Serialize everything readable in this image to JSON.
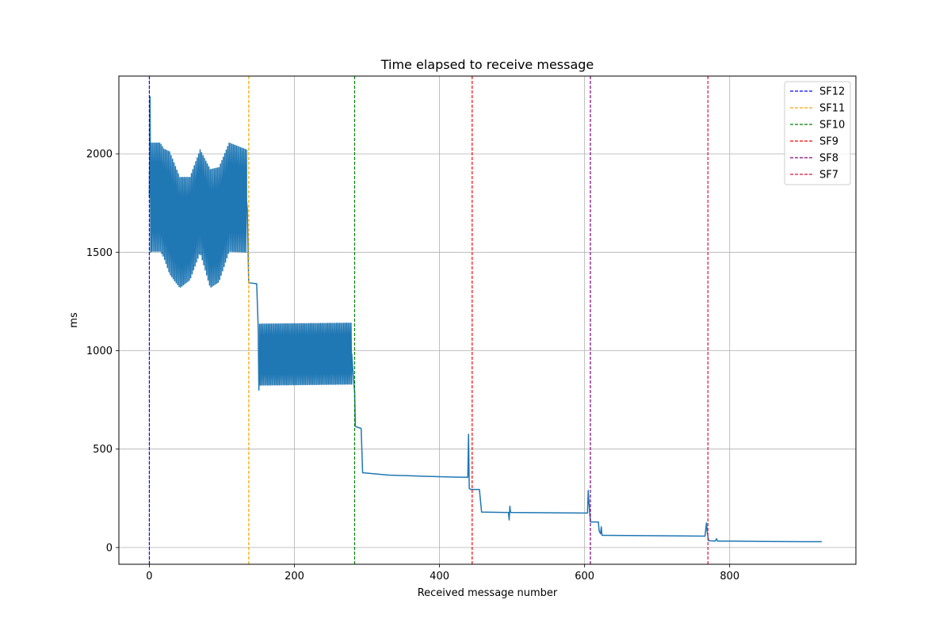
{
  "chart_data": {
    "type": "line",
    "title": "Time elapsed to receive message",
    "xlabel": "Received message number",
    "ylabel": "ms",
    "xlim": [
      -42,
      974
    ],
    "ylim": [
      -85,
      2395
    ],
    "xticks": [
      0,
      200,
      400,
      600,
      800
    ],
    "yticks": [
      0,
      500,
      1000,
      1500,
      2000
    ],
    "grid": true,
    "legend_position": "top-right",
    "series": [
      {
        "name": "",
        "color": "#1f77b4",
        "segments": [
          {
            "kind": "line",
            "points": [
              [
                0,
                1780
              ],
              [
                1,
                2290
              ],
              [
                2,
                1500
              ]
            ]
          },
          {
            "kind": "oscillation",
            "x_start": 2,
            "x_end": 134,
            "step": 1,
            "center": [
              [
                2,
                1780
              ],
              [
                15,
                1780
              ],
              [
                28,
                1700
              ],
              [
                42,
                1600
              ],
              [
                56,
                1620
              ],
              [
                70,
                1760
              ],
              [
                84,
                1620
              ],
              [
                96,
                1640
              ],
              [
                110,
                1780
              ],
              [
                134,
                1760
              ]
            ],
            "amplitude": [
              [
                2,
                275
              ],
              [
                20,
                275
              ],
              [
                28,
                310
              ],
              [
                42,
                280
              ],
              [
                56,
                260
              ],
              [
                70,
                260
              ],
              [
                84,
                300
              ],
              [
                96,
                290
              ],
              [
                110,
                275
              ],
              [
                134,
                260
              ]
            ]
          },
          {
            "kind": "line",
            "points": [
              [
                134,
                1760
              ],
              [
                135,
                1720
              ],
              [
                137,
                1345
              ],
              [
                148,
                1340
              ],
              [
                150,
                1120
              ],
              [
                151,
                800
              ],
              [
                152,
                960
              ]
            ]
          },
          {
            "kind": "oscillation",
            "x_start": 152,
            "x_end": 279,
            "step": 1,
            "center": [
              [
                152,
                980
              ],
              [
                279,
                985
              ]
            ],
            "amplitude": [
              [
                152,
                155
              ],
              [
                279,
                155
              ]
            ]
          },
          {
            "kind": "line",
            "points": [
              [
                279,
                985
              ],
              [
                281,
                880
              ],
              [
                283,
                790
              ],
              [
                284,
                615
              ],
              [
                292,
                605
              ],
              [
                294,
                380
              ],
              [
                330,
                368
              ],
              [
                380,
                362
              ],
              [
                420,
                358
              ],
              [
                439,
                357
              ],
              [
                440,
                575
              ],
              [
                441,
                300
              ],
              [
                443,
                295
              ],
              [
                455,
                295
              ],
              [
                458,
                180
              ],
              [
                495,
                178
              ],
              [
                496,
                140
              ],
              [
                497,
                210
              ],
              [
                498,
                178
              ],
              [
                600,
                175
              ],
              [
                604,
                175
              ],
              [
                605,
                290
              ],
              [
                606,
                230
              ],
              [
                608,
                130
              ],
              [
                619,
                130
              ],
              [
                620,
                85
              ],
              [
                622,
                70
              ],
              [
                623,
                105
              ],
              [
                624,
                62
              ],
              [
                700,
                60
              ],
              [
                766,
                58
              ],
              [
                768,
                125
              ],
              [
                769,
                80
              ],
              [
                771,
                35
              ],
              [
                780,
                33
              ],
              [
                782,
                45
              ],
              [
                783,
                33
              ],
              [
                800,
                33
              ],
              [
                850,
                31
              ],
              [
                900,
                30
              ],
              [
                927,
                30
              ]
            ]
          }
        ]
      }
    ],
    "vlines": [
      {
        "name": "SF12",
        "x": 0,
        "color": "#0000ff"
      },
      {
        "name": "SF11",
        "x": 137,
        "color": "#ffa500"
      },
      {
        "name": "SF10",
        "x": 283,
        "color": "#008000"
      },
      {
        "name": "SF9",
        "x": 445,
        "color": "#ff0000"
      },
      {
        "name": "SF8",
        "x": 608,
        "color": "#800080"
      },
      {
        "name": "SF7",
        "x": 770,
        "color": "#dc143c"
      }
    ]
  }
}
